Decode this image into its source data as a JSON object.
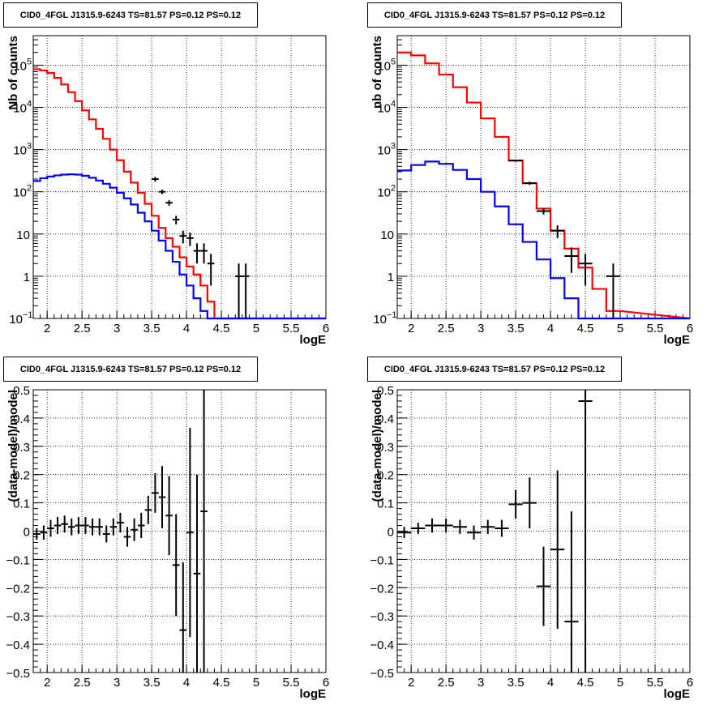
{
  "chart_data": [
    {
      "type": "line",
      "title": "CID0_4FGL J1315.9-6243 TS=81.57 PS=0.12 PS=0.12",
      "xlabel": "logE",
      "ylabel": "Nb of counts",
      "xlim": [
        1.8,
        6.0
      ],
      "ylim": [
        0.1,
        500000
      ],
      "ylog": true,
      "grid": true,
      "x_ticks": [
        "2",
        "2.5",
        "3",
        "3.5",
        "4",
        "4.5",
        "5",
        "5.5",
        "6"
      ],
      "y_ticks": [
        {
          "v": 0.1,
          "l": "10",
          "sup": "−1"
        },
        {
          "v": 1,
          "l": "1",
          "sup": ""
        },
        {
          "v": 10,
          "l": "10",
          "sup": ""
        },
        {
          "v": 100,
          "l": "10",
          "sup": "2"
        },
        {
          "v": 1000,
          "l": "10",
          "sup": "3"
        },
        {
          "v": 10000,
          "l": "10",
          "sup": "4"
        },
        {
          "v": 100000,
          "l": "10",
          "sup": "5"
        }
      ],
      "bin_width": 0.1,
      "x_start": 1.8,
      "series": [
        {
          "color": "#ff0000",
          "style": "step",
          "values": [
            80000,
            75000,
            65000,
            50000,
            35000,
            23000,
            14000,
            8500,
            5200,
            3100,
            1800,
            1000,
            560,
            300,
            165,
            95,
            52,
            27,
            14,
            8,
            5,
            2.8,
            1.7,
            1.1,
            0.6,
            0.25,
            0.1
          ]
        },
        {
          "color": "#0000ff",
          "style": "step",
          "values": [
            180,
            210,
            230,
            245,
            255,
            260,
            255,
            240,
            215,
            185,
            155,
            125,
            95,
            70,
            50,
            32,
            20,
            12,
            7,
            4,
            2.2,
            1.1,
            0.6,
            0.3,
            0.15,
            0.1,
            0.1
          ]
        }
      ],
      "points": [
        {
          "x": 3.55,
          "y": 200,
          "e": 25
        },
        {
          "x": 3.65,
          "y": 100,
          "e": 12
        },
        {
          "x": 3.75,
          "y": 55,
          "e": 8
        },
        {
          "x": 3.85,
          "y": 22,
          "e": 5
        },
        {
          "x": 3.95,
          "y": 9,
          "e": 3
        },
        {
          "x": 4.05,
          "y": 8,
          "e": 2.8
        },
        {
          "x": 4.15,
          "y": 4,
          "e": 2
        },
        {
          "x": 4.25,
          "y": 4,
          "e": 2
        },
        {
          "x": 4.35,
          "y": 2,
          "e": 1.4
        },
        {
          "x": 4.75,
          "y": 1,
          "e": 1
        },
        {
          "x": 4.85,
          "y": 1,
          "e": 1
        }
      ]
    },
    {
      "type": "line",
      "title": "CID0_4FGL J1315.9-6243 TS=81.57 PS=0.12 PS=0.12",
      "xlabel": "logE",
      "ylabel": "nb of counts",
      "xlim": [
        1.8,
        6.0
      ],
      "ylim": [
        0.1,
        500000
      ],
      "ylog": true,
      "grid": true,
      "x_ticks": [
        "2",
        "2.5",
        "3",
        "3.5",
        "4",
        "4.5",
        "5",
        "5.5",
        "6"
      ],
      "y_ticks": [
        {
          "v": 0.1,
          "l": "10",
          "sup": "−1"
        },
        {
          "v": 1,
          "l": "1",
          "sup": ""
        },
        {
          "v": 10,
          "l": "10",
          "sup": ""
        },
        {
          "v": 100,
          "l": "10",
          "sup": "2"
        },
        {
          "v": 1000,
          "l": "10",
          "sup": "3"
        },
        {
          "v": 10000,
          "l": "10",
          "sup": "4"
        },
        {
          "v": 100000,
          "l": "10",
          "sup": "5"
        }
      ],
      "bin_width": 0.2,
      "x_start": 1.8,
      "series": [
        {
          "color": "#ff0000",
          "style": "step",
          "values": [
            200000,
            170000,
            110000,
            60000,
            30000,
            13000,
            5500,
            2000,
            550,
            160,
            40,
            12,
            4.5,
            1.6,
            0.5,
            0.15
          ]
        },
        {
          "color": "#0000ff",
          "style": "step",
          "values": [
            320,
            430,
            520,
            460,
            330,
            200,
            100,
            45,
            17,
            6.5,
            2.5,
            0.9,
            0.3,
            0.1,
            0.1,
            0.1
          ]
        }
      ],
      "points": [
        {
          "x": 3.5,
          "y": 550,
          "e": 30
        },
        {
          "x": 3.7,
          "y": 160,
          "e": 14
        },
        {
          "x": 3.9,
          "y": 35,
          "e": 6
        },
        {
          "x": 4.1,
          "y": 12,
          "e": 4
        },
        {
          "x": 4.3,
          "y": 3,
          "e": 1.8
        },
        {
          "x": 4.5,
          "y": 2,
          "e": 1.4
        },
        {
          "x": 4.9,
          "y": 1,
          "e": 1
        }
      ]
    },
    {
      "type": "scatter",
      "title": "CID0_4FGL J1315.9-6243 TS=81.57 PS=0.12 PS=0.12",
      "xlabel": "logE",
      "ylabel": "(data-model)/model",
      "xlim": [
        1.8,
        6.0
      ],
      "ylim": [
        -0.5,
        0.5
      ],
      "ylog": false,
      "grid": true,
      "x_ticks": [
        "2",
        "2.5",
        "3",
        "3.5",
        "4",
        "4.5",
        "5",
        "5.5",
        "6"
      ],
      "y_ticks_lin": [
        "−0.5",
        "−0.4",
        "−0.3",
        "−0.2",
        "−0.1",
        "0",
        "0.1",
        "0.2",
        "0.3",
        "0.4",
        "0.5"
      ],
      "bin_width": 0.1,
      "points": [
        {
          "x": 1.85,
          "y": -0.01,
          "e": 0.02
        },
        {
          "x": 1.95,
          "y": -0.005,
          "e": 0.025
        },
        {
          "x": 2.05,
          "y": 0.01,
          "e": 0.03
        },
        {
          "x": 2.15,
          "y": 0.02,
          "e": 0.03
        },
        {
          "x": 2.25,
          "y": 0.025,
          "e": 0.03
        },
        {
          "x": 2.35,
          "y": 0.015,
          "e": 0.03
        },
        {
          "x": 2.45,
          "y": 0.02,
          "e": 0.03
        },
        {
          "x": 2.55,
          "y": 0.02,
          "e": 0.03
        },
        {
          "x": 2.65,
          "y": 0.015,
          "e": 0.03
        },
        {
          "x": 2.75,
          "y": 0.015,
          "e": 0.03
        },
        {
          "x": 2.85,
          "y": -0.01,
          "e": 0.03
        },
        {
          "x": 2.95,
          "y": 0.015,
          "e": 0.03
        },
        {
          "x": 3.05,
          "y": 0.03,
          "e": 0.035
        },
        {
          "x": 3.15,
          "y": -0.02,
          "e": 0.035
        },
        {
          "x": 3.25,
          "y": 0.005,
          "e": 0.04
        },
        {
          "x": 3.35,
          "y": 0.02,
          "e": 0.045
        },
        {
          "x": 3.45,
          "y": 0.075,
          "e": 0.05
        },
        {
          "x": 3.55,
          "y": 0.135,
          "e": 0.07
        },
        {
          "x": 3.65,
          "y": 0.12,
          "e": 0.11
        },
        {
          "x": 3.75,
          "y": 0.055,
          "e": 0.14
        },
        {
          "x": 3.85,
          "y": -0.12,
          "e": 0.18
        },
        {
          "x": 3.95,
          "y": -0.35,
          "e": 0.24
        },
        {
          "x": 4.05,
          "y": -0.005,
          "e": 0.37
        },
        {
          "x": 4.15,
          "y": -0.15,
          "e": 0.35
        },
        {
          "x": 4.25,
          "y": 0.07,
          "e": 0.6
        }
      ]
    },
    {
      "type": "scatter",
      "title": "CID0_4FGL J1315.9-6243 TS=81.57 PS=0.12 PS=0.12",
      "xlabel": "logE",
      "ylabel": "(data-model)/model",
      "xlim": [
        1.8,
        6.0
      ],
      "ylim": [
        -0.5,
        0.5
      ],
      "ylog": false,
      "grid": true,
      "x_ticks": [
        "2",
        "2.5",
        "3",
        "3.5",
        "4",
        "4.5",
        "5",
        "5.5",
        "6"
      ],
      "y_ticks_lin": [
        "−0.5",
        "−0.4",
        "−0.3",
        "−0.2",
        "−0.1",
        "0",
        "0.1",
        "0.2",
        "0.3",
        "0.4",
        "0.5"
      ],
      "bin_width": 0.2,
      "points": [
        {
          "x": 1.9,
          "y": -0.005,
          "e": 0.02
        },
        {
          "x": 2.1,
          "y": 0.01,
          "e": 0.02
        },
        {
          "x": 2.3,
          "y": 0.02,
          "e": 0.025
        },
        {
          "x": 2.5,
          "y": 0.02,
          "e": 0.025
        },
        {
          "x": 2.7,
          "y": 0.015,
          "e": 0.025
        },
        {
          "x": 2.9,
          "y": -0.005,
          "e": 0.025
        },
        {
          "x": 3.1,
          "y": 0.015,
          "e": 0.025
        },
        {
          "x": 3.3,
          "y": 0.01,
          "e": 0.03
        },
        {
          "x": 3.5,
          "y": 0.095,
          "e": 0.05
        },
        {
          "x": 3.7,
          "y": 0.1,
          "e": 0.09
        },
        {
          "x": 3.9,
          "y": -0.195,
          "e": 0.14
        },
        {
          "x": 4.1,
          "y": -0.065,
          "e": 0.28
        },
        {
          "x": 4.3,
          "y": -0.32,
          "e": 0.39
        },
        {
          "x": 4.5,
          "y": 0.46,
          "e": 0.96
        }
      ]
    }
  ]
}
